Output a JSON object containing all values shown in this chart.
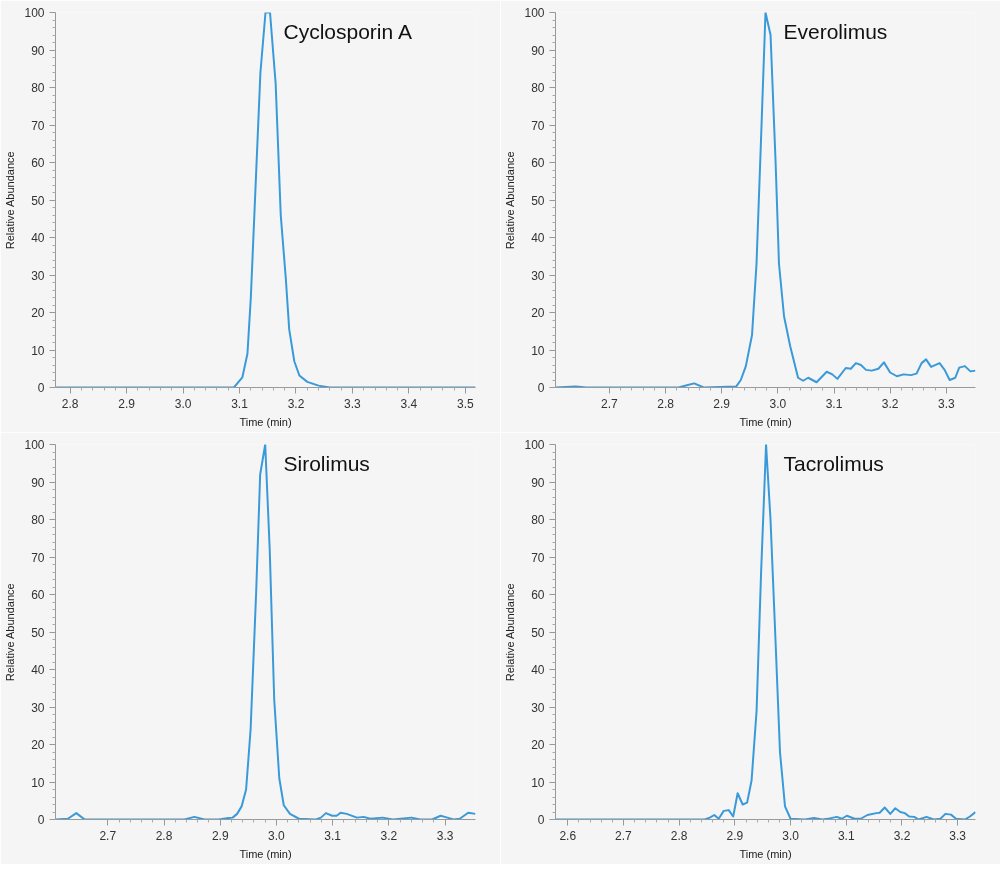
{
  "chart_data": [
    {
      "type": "line",
      "title": "Cyclosporin A",
      "xlabel": "Time (min)",
      "ylabel": "Relative Abundance",
      "xlim": [
        2.774,
        3.518
      ],
      "ylim": [
        0,
        100
      ],
      "xticks": [
        {
          "value": 2.8,
          "label": "2.8"
        },
        {
          "value": 2.9,
          "label": "2.9"
        },
        {
          "value": 3.0,
          "label": "3.0"
        },
        {
          "value": 3.1,
          "label": "3.1"
        },
        {
          "value": 3.2,
          "label": "3.2"
        },
        {
          "value": 3.3,
          "label": "3.3"
        },
        {
          "value": 3.4,
          "label": "3.4"
        },
        {
          "value": 3.5,
          "label": "3.5"
        }
      ],
      "yticks": [
        0,
        10,
        20,
        30,
        40,
        50,
        60,
        70,
        80,
        90,
        100
      ],
      "grid": false,
      "marker": "none",
      "line_style": "solid",
      "series": [
        {
          "color": "#3a9ad9",
          "x": [
            2.774,
            3.09,
            3.105,
            3.114,
            3.12,
            3.137,
            3.146,
            3.154,
            3.164,
            3.173,
            3.182,
            3.188,
            3.197,
            3.206,
            3.22,
            3.24,
            3.26,
            3.518
          ],
          "values": [
            0,
            0,
            2.7,
            9,
            24,
            84,
            100,
            100,
            81,
            46,
            29,
            15.5,
            7,
            3.2,
            1.5,
            0.5,
            0,
            0
          ]
        }
      ]
    },
    {
      "type": "line",
      "title": "Everolimus",
      "xlabel": "Time (min)",
      "ylabel": "Relative Abundance",
      "xlim": [
        2.604,
        3.352
      ],
      "ylim": [
        0,
        100
      ],
      "xticks": [
        2.7,
        2.8,
        2.9,
        {
          "value": 3.0,
          "label": "3.0"
        },
        3.1,
        3.2,
        3.3
      ],
      "yticks": [
        0,
        10,
        20,
        30,
        40,
        50,
        60,
        70,
        80,
        90,
        100
      ],
      "grid": false,
      "marker": "none",
      "line_style": "solid",
      "series": [
        {
          "color": "#3a9ad9",
          "x": [
            2.604,
            2.64,
            2.659,
            2.823,
            2.838,
            2.851,
            2.868,
            2.926,
            2.934,
            2.943,
            2.954,
            2.962,
            2.97,
            2.978,
            2.987,
            2.996,
            3.002,
            3.011,
            3.022,
            3.036,
            3.045,
            3.054,
            3.069,
            3.087,
            3.097,
            3.106,
            3.121,
            3.13,
            3.139,
            3.148,
            3.157,
            3.167,
            3.179,
            3.189,
            3.2,
            3.212,
            3.224,
            3.237,
            3.247,
            3.256,
            3.264,
            3.273,
            3.288,
            3.297,
            3.306,
            3.316,
            3.323,
            3.333,
            3.343,
            3.352
          ],
          "values": [
            0,
            0.3,
            0,
            0,
            0.6,
            1.1,
            0,
            0.3,
            2,
            5.7,
            14,
            33,
            66,
            100,
            94,
            60,
            33,
            19,
            11,
            2.6,
            1.8,
            2.6,
            1.4,
            4.2,
            3.5,
            2.3,
            5.2,
            5,
            6.5,
            6,
            4.7,
            4.5,
            5,
            6.7,
            4,
            3,
            3.5,
            3.3,
            3.7,
            6.5,
            7.5,
            5.5,
            6.5,
            4.7,
            2,
            2.6,
            5.3,
            5.7,
            4.3,
            4.5
          ]
        }
      ]
    },
    {
      "type": "line",
      "title": "Sirolimus",
      "xlabel": "Time (min)",
      "ylabel": "Relative Abundance",
      "xlim": [
        2.607,
        3.354
      ],
      "ylim": [
        0,
        100
      ],
      "xticks": [
        2.7,
        2.8,
        2.9,
        {
          "value": 3.0,
          "label": "3.0"
        },
        3.1,
        3.2,
        3.3
      ],
      "yticks": [
        0,
        10,
        20,
        30,
        40,
        50,
        60,
        70,
        80,
        90,
        100
      ],
      "grid": false,
      "marker": "none",
      "line_style": "solid",
      "series": [
        {
          "color": "#3a9ad9",
          "x": [
            2.607,
            2.629,
            2.644,
            2.659,
            2.836,
            2.854,
            2.872,
            2.897,
            2.915,
            2.922,
            2.93,
            2.938,
            2.946,
            2.954,
            2.964,
            2.971,
            2.98,
            2.988,
            2.996,
            3.005,
            3.013,
            3.024,
            3.04,
            3.07,
            3.079,
            3.088,
            3.099,
            3.107,
            3.114,
            3.125,
            3.143,
            3.155,
            3.167,
            3.189,
            3.207,
            3.24,
            3.256,
            3.277,
            3.292,
            3.304,
            3.315,
            3.326,
            3.341,
            3.354
          ],
          "values": [
            0,
            0.2,
            1.7,
            0,
            0,
            0.7,
            0,
            0,
            0.4,
            0.5,
            1.5,
            3.5,
            8,
            24,
            61,
            92,
            100,
            72,
            32,
            11,
            3.8,
            1.5,
            0.2,
            0,
            0.5,
            1.7,
            1,
            1,
            1.8,
            1.5,
            0.5,
            0.7,
            0.2,
            0.5,
            0,
            0.5,
            0,
            0,
            1,
            0.5,
            0,
            0.2,
            1.8,
            1.5
          ]
        }
      ]
    },
    {
      "type": "line",
      "title": "Tacrolimus",
      "xlabel": "Time (min)",
      "ylabel": "Relative Abundance",
      "xlim": [
        2.578,
        3.332
      ],
      "ylim": [
        0,
        100
      ],
      "xticks": [
        2.6,
        2.7,
        2.8,
        2.9,
        {
          "value": 3.0,
          "label": "3.0"
        },
        3.1,
        3.2,
        3.3
      ],
      "yticks": [
        0,
        10,
        20,
        30,
        40,
        50,
        60,
        70,
        80,
        90,
        100
      ],
      "grid": false,
      "marker": "none",
      "line_style": "solid",
      "series": [
        {
          "color": "#3a9ad9",
          "x": [
            2.578,
            2.846,
            2.855,
            2.863,
            2.871,
            2.88,
            2.889,
            2.897,
            2.905,
            2.914,
            2.922,
            2.93,
            2.939,
            2.947,
            2.956,
            2.964,
            2.973,
            2.981,
            2.99,
            3.0,
            3.026,
            3.042,
            3.057,
            3.07,
            3.083,
            3.092,
            3.101,
            3.115,
            3.126,
            3.138,
            3.154,
            3.16,
            3.169,
            3.179,
            3.188,
            3.197,
            3.205,
            3.213,
            3.222,
            3.23,
            3.244,
            3.257,
            3.269,
            3.278,
            3.288,
            3.297,
            3.313,
            3.322,
            3.332
          ],
          "values": [
            0,
            0,
            0.5,
            1.2,
            0.2,
            2.3,
            2.5,
            0.8,
            7,
            4,
            4.5,
            10.4,
            29,
            65.5,
            100,
            80,
            47.6,
            18,
            3.5,
            0.2,
            0,
            0.4,
            0,
            0.3,
            0.7,
            0.2,
            1,
            0.2,
            0.2,
            1.2,
            1.7,
            1.8,
            3.2,
            1.5,
            3,
            2,
            1.7,
            0.8,
            0.7,
            0,
            0.7,
            0,
            0.2,
            1.5,
            1.3,
            0.2,
            0,
            0.8,
            2
          ]
        }
      ]
    }
  ]
}
